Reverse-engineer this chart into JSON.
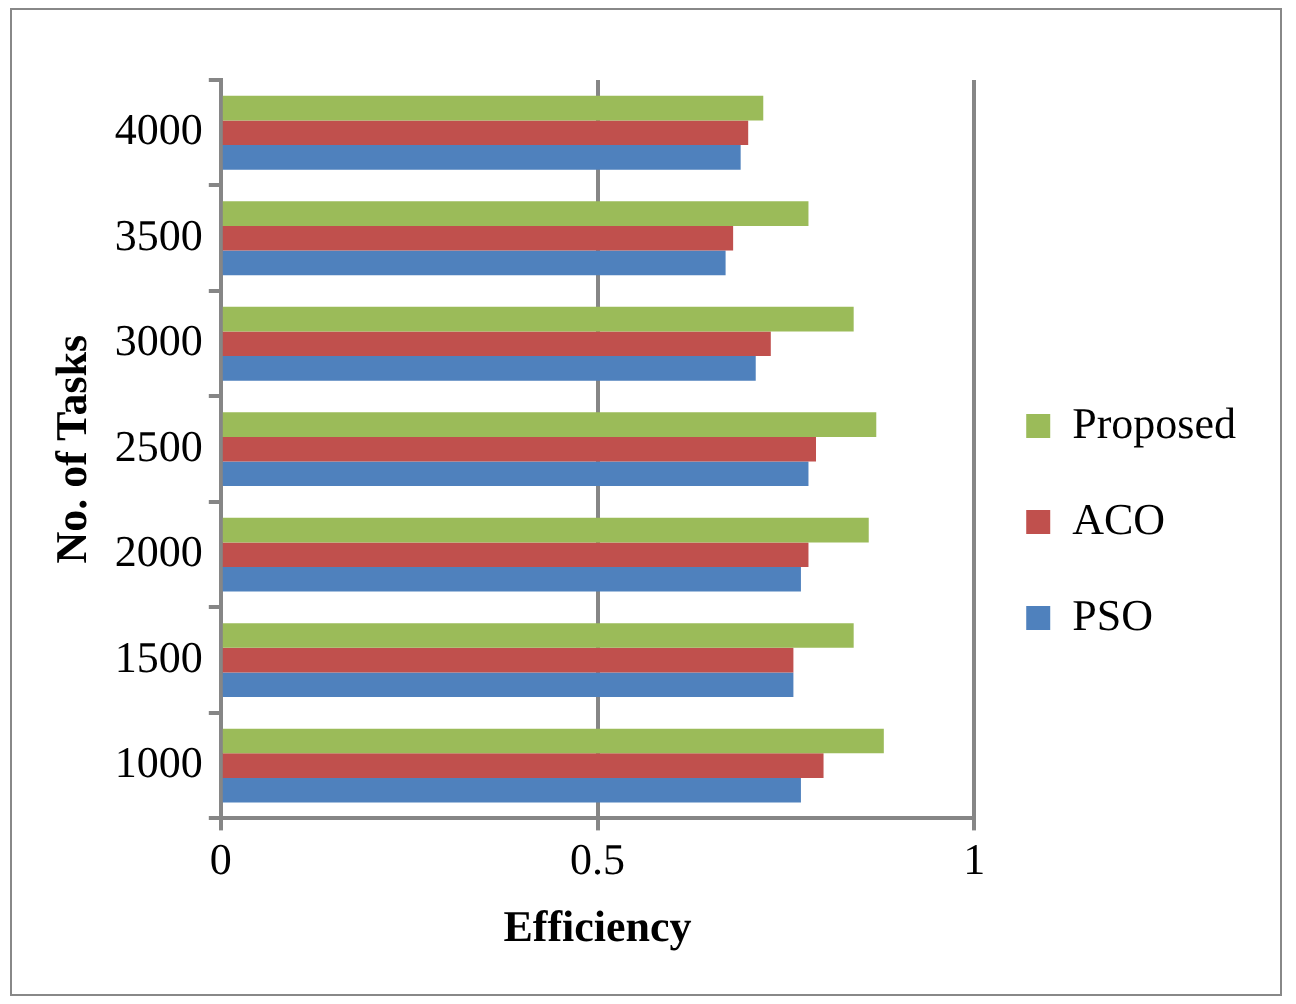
{
  "chart_data": {
    "type": "bar",
    "orientation": "horizontal",
    "xlabel": "Efficiency",
    "ylabel": "No. of Tasks",
    "categories": [
      "4000",
      "3500",
      "3000",
      "2500",
      "2000",
      "1500",
      "1000"
    ],
    "series": [
      {
        "name": "Proposed",
        "color": "#9bbb59",
        "values": [
          0.72,
          0.78,
          0.84,
          0.87,
          0.86,
          0.84,
          0.88
        ]
      },
      {
        "name": "ACO",
        "color": "#c0504d",
        "values": [
          0.7,
          0.68,
          0.73,
          0.79,
          0.78,
          0.76,
          0.8
        ]
      },
      {
        "name": "PSO",
        "color": "#4f81bd",
        "values": [
          0.69,
          0.67,
          0.71,
          0.78,
          0.77,
          0.76,
          0.77
        ]
      }
    ],
    "xlim": [
      0,
      1
    ],
    "xticks": [
      0,
      0.5,
      1
    ],
    "grid": "x",
    "legend": "right"
  }
}
